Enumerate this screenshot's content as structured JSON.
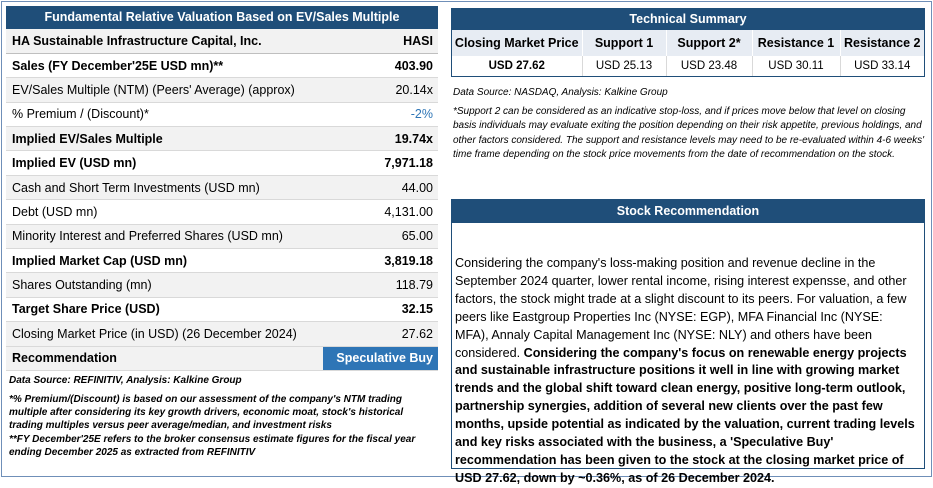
{
  "valuation": {
    "title": "Fundamental Relative Valuation Based on EV/Sales Multiple",
    "company": "HA Sustainable Infrastructure Capital, Inc.",
    "ticker": "HASI",
    "rows": [
      {
        "label": "Sales (FY December'25E USD mn)**",
        "value": "403.90"
      },
      {
        "label": "EV/Sales Multiple (NTM)  (Peers' Average) (approx)",
        "value": "20.14x"
      },
      {
        "label": "% Premium / (Discount)*",
        "value": "-2%"
      },
      {
        "label": "Implied EV/Sales Multiple",
        "value": "19.74x"
      },
      {
        "label": "Implied EV (USD mn)",
        "value": "7,971.18"
      },
      {
        "label": "Cash and Short Term Investments (USD mn)",
        "value": "44.00"
      },
      {
        "label": "Debt (USD mn)",
        "value": "4,131.00"
      },
      {
        "label": "Minority Interest and Preferred Shares (USD mn)",
        "value": "65.00"
      },
      {
        "label": "Implied Market Cap (USD mn)",
        "value": "3,819.18"
      },
      {
        "label": "Shares Outstanding (mn)",
        "value": "118.79"
      },
      {
        "label": "Target Share Price (USD)",
        "value": "32.15"
      },
      {
        "label": "Closing Market Price (in USD) (26 December 2024)",
        "value": "27.62"
      }
    ],
    "recommendation_label": "Recommendation",
    "recommendation_value": "Speculative Buy",
    "data_source": "Data Source: REFINITIV, Analysis: Kalkine Group",
    "note1": "*% Premium/(Discount) is based on our assessment of the company's NTM trading multiple after considering its key growth drivers, economic moat, stock's historical trading multiples versus peer average/median, and investment risks",
    "note2": "**FY December'25E refers to the broker consensus estimate figures for the fiscal year ending December 2025  as extracted from REFINITIV"
  },
  "technical": {
    "title": "Technical Summary",
    "headers": [
      "Closing Market Price",
      "Support 1",
      "Support 2*",
      "Resistance 1",
      "Resistance 2"
    ],
    "values": [
      "USD 27.62",
      "USD 25.13",
      "USD 23.48",
      "USD 30.11",
      "USD 33.14"
    ],
    "data_source": "Data Source: NASDAQ, Analysis: Kalkine Group",
    "note": "*Support 2 can be considered as an indicative stop-loss, and if prices move below that level on closing basis individuals may evaluate exiting the position depending on their risk appetite, previous holdings, and other factors considered. The support and resistance levels may need to be re-evaluated within 4-6 weeks' time frame depending on the stock price movements from the date of recommendation on the stock."
  },
  "recommendation": {
    "title": "Stock Recommendation",
    "text_plain": "Considering the company's loss-making position and revenue decline in the September 2024 quarter, lower rental income, rising interest expensse, and other factors, the stock might trade at a slight discount to its peers. For valuation, a few peers like Eastgroup Properties Inc (NYSE: EGP), MFA Financial Inc (NYSE: MFA), Annaly Capital Management Inc (NYSE: NLY) and others have been considered. ",
    "text_bold": "Considering the company's focus on renewable energy projects and sustainable infrastructure positions it well in line with growing market trends and the global shift toward clean energy, positive long-term outlook, partnership synergies, addition of several new clients over the past few months, upside potential as indicated by the valuation, current trading levels and key risks associated with the business, a 'Speculative Buy' recommendation has been given to the stock at the closing market price of USD 27.62, down by ~0.36%, as of 26 December 2024."
  }
}
